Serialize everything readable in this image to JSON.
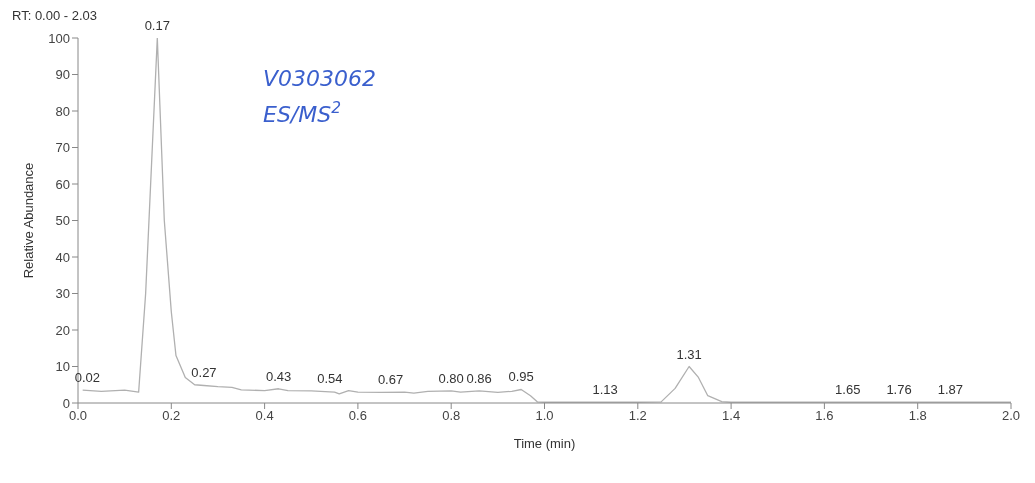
{
  "chart_data": {
    "type": "line",
    "title": "RT: 0.00 - 2.03",
    "xlabel": "Time (min)",
    "ylabel": "Relative Abundance",
    "x": [
      0.01,
      0.05,
      0.1,
      0.13,
      0.145,
      0.17,
      0.185,
      0.2,
      0.21,
      0.23,
      0.25,
      0.27,
      0.3,
      0.33,
      0.35,
      0.4,
      0.43,
      0.45,
      0.5,
      0.55,
      0.56,
      0.58,
      0.6,
      0.65,
      0.7,
      0.72,
      0.75,
      0.8,
      0.82,
      0.86,
      0.9,
      0.93,
      0.95,
      0.97,
      0.985,
      1.0,
      1.2,
      1.25,
      1.28,
      1.31,
      1.33,
      1.35,
      1.38,
      1.4,
      1.6,
      2.0
    ],
    "series": [
      {
        "color": "#b0b0b0",
        "values": [
          3.5,
          3.2,
          3.5,
          3.0,
          30,
          100,
          50,
          25,
          13,
          7,
          5,
          4.8,
          4.5,
          4.3,
          3.6,
          3.4,
          3.9,
          3.4,
          3.3,
          3.0,
          2.5,
          3.4,
          3.0,
          2.9,
          3.0,
          2.7,
          3.2,
          3.3,
          3.0,
          3.3,
          2.9,
          3.2,
          3.7,
          2.0,
          0.3,
          0.2,
          0.2,
          0.3,
          4,
          10,
          7,
          2,
          0.4,
          0.2,
          0.2,
          0.2
        ]
      }
    ],
    "xlim": [
      0,
      2.0
    ],
    "xticks": [
      {
        "value": 0,
        "label": "0.0"
      },
      {
        "value": 0.2,
        "label": "0.2"
      },
      {
        "value": 0.4,
        "label": "0.4"
      },
      {
        "value": 0.6,
        "label": "0.6"
      },
      {
        "value": 0.8,
        "label": "0.8"
      },
      {
        "value": 1.0,
        "label": "1.0"
      },
      {
        "value": 1.2,
        "label": "1.2"
      },
      {
        "value": 1.4,
        "label": "1.4"
      },
      {
        "value": 1.6,
        "label": "1.6"
      },
      {
        "value": 1.8,
        "label": "1.8"
      },
      {
        "value": 2.0,
        "label": "2.0"
      }
    ],
    "ylim": [
      0,
      100
    ],
    "yticks": [
      0,
      10,
      20,
      30,
      40,
      50,
      60,
      70,
      80,
      90,
      100
    ],
    "grid": false,
    "legend": false,
    "marker": "none",
    "line_style": "solid",
    "annotations": [
      {
        "text": "0.02",
        "x": 0.02,
        "y": 3.5
      },
      {
        "text": "0.17",
        "x": 0.17,
        "y": 100
      },
      {
        "text": "0.27",
        "x": 0.27,
        "y": 4.8
      },
      {
        "text": "0.43",
        "x": 0.43,
        "y": 3.9
      },
      {
        "text": "0.54",
        "x": 0.54,
        "y": 3.2
      },
      {
        "text": "0.67",
        "x": 0.67,
        "y": 3.0
      },
      {
        "text": "0.80",
        "x": 0.8,
        "y": 3.3
      },
      {
        "text": "0.86",
        "x": 0.86,
        "y": 3.3
      },
      {
        "text": "0.95",
        "x": 0.95,
        "y": 3.7
      },
      {
        "text": "1.13",
        "x": 1.13,
        "y": 0.2
      },
      {
        "text": "1.31",
        "x": 1.31,
        "y": 10
      },
      {
        "text": "1.65",
        "x": 1.65,
        "y": 0.2
      },
      {
        "text": "1.76",
        "x": 1.76,
        "y": 0.2
      },
      {
        "text": "1.87",
        "x": 1.87,
        "y": 0.2
      },
      "V0303062",
      "ES/MS$^{2}$"
    ]
  }
}
